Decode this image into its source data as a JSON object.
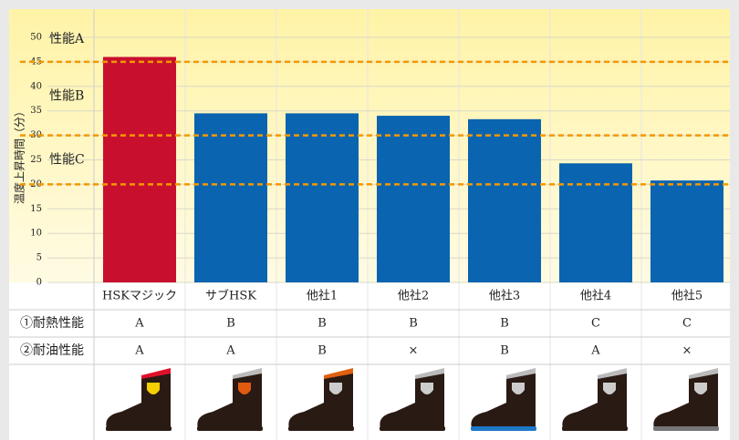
{
  "chart_data": {
    "type": "bar",
    "y_axis_label": "温度上昇時間（分）",
    "categories": [
      "HSKマジック",
      "サブHSK",
      "他社1",
      "他社2",
      "他社3",
      "他社4",
      "他社5"
    ],
    "values": [
      46,
      34.5,
      34.5,
      34,
      33.3,
      24.3,
      20.8
    ],
    "colors": [
      "#c8102e",
      "#0a64b0",
      "#0a64b0",
      "#0a64b0",
      "#0a64b0",
      "#0a64b0",
      "#0a64b0"
    ],
    "ylim": [
      0,
      50
    ],
    "yticks": [
      0,
      5,
      10,
      15,
      20,
      25,
      30,
      35,
      40,
      45,
      50
    ],
    "grid": true,
    "thresholds": [
      {
        "label": "性能A",
        "value": 45
      },
      {
        "label": "性能B",
        "value": 30
      },
      {
        "label": "性能C",
        "value": 20
      }
    ],
    "threshold_color": "#f39800"
  },
  "table": {
    "rows": [
      {
        "label": "①耐熱性能",
        "cells": [
          "A",
          "B",
          "B",
          "B",
          "B",
          "C",
          "C"
        ]
      },
      {
        "label": "②耐油性能",
        "cells": [
          "A",
          "A",
          "B",
          "×",
          "B",
          "A",
          "×"
        ]
      }
    ]
  }
}
